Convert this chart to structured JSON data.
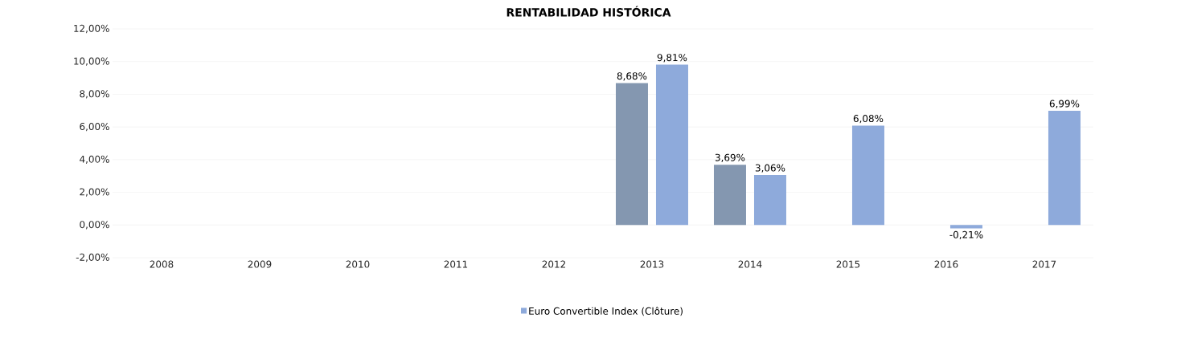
{
  "chart_data": {
    "type": "bar",
    "title": "RENTABILIDAD HISTÓRICA",
    "categories": [
      "2008",
      "2009",
      "2010",
      "2011",
      "2012",
      "2013",
      "2014",
      "2015",
      "2016",
      "2017"
    ],
    "series": [
      {
        "color": "#8497b0",
        "values": [
          null,
          null,
          null,
          null,
          null,
          8.68,
          3.69,
          null,
          null,
          null
        ],
        "value_labels": [
          null,
          null,
          null,
          null,
          null,
          "8,68%",
          "3,69%",
          null,
          null,
          null
        ]
      },
      {
        "name": "Euro Convertible Index (Clôture)",
        "color": "#8eaadb",
        "values": [
          null,
          null,
          null,
          null,
          null,
          9.81,
          3.06,
          6.08,
          -0.21,
          6.99
        ],
        "value_labels": [
          null,
          null,
          null,
          null,
          null,
          "9,81%",
          "3,06%",
          "6,08%",
          "-0,21%",
          "6,99%"
        ]
      }
    ],
    "ylim": [
      -2,
      12
    ],
    "yticks": [
      {
        "value": -2,
        "label": "-2,00%"
      },
      {
        "value": 0,
        "label": "0,00%"
      },
      {
        "value": 2,
        "label": "2,00%"
      },
      {
        "value": 4,
        "label": "4,00%"
      },
      {
        "value": 6,
        "label": "6,00%"
      },
      {
        "value": 8,
        "label": "8,00%"
      },
      {
        "value": 10,
        "label": "10,00%"
      },
      {
        "value": 12,
        "label": "12,00%"
      }
    ],
    "grid": "y",
    "legend": "bottom"
  }
}
